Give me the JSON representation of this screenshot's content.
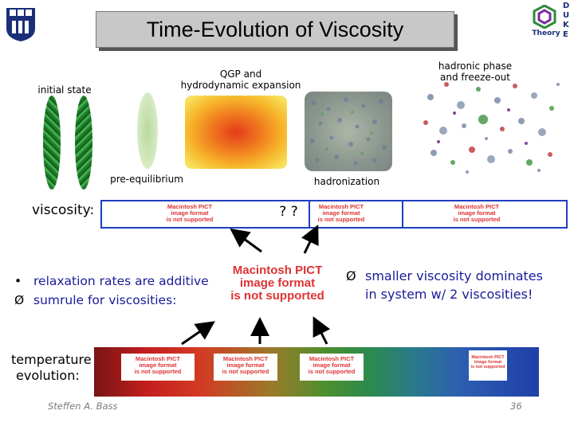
{
  "title": "Time-Evolution of Viscosity",
  "logo_right_text": "Theory",
  "logo_right_letters": [
    "D",
    "U",
    "K",
    "E"
  ],
  "stages": {
    "initial_state": "initial state",
    "pre_equilibrium": "pre-equilibrium",
    "qgp": [
      "QGP and",
      "hydrodynamic expansion"
    ],
    "hadronization": "hadronization",
    "hadronic": [
      "hadronic phase",
      "and freeze-out"
    ]
  },
  "viscosity_row": {
    "label": "viscosity:",
    "unknown": "? ?"
  },
  "pict": [
    "Macintosh PICT",
    "image format",
    "is not supported"
  ],
  "bullets": [
    {
      "mark": "•",
      "text": "relaxation rates are additive"
    },
    {
      "mark": "Ø",
      "text": "sumrule for viscosities:"
    }
  ],
  "right_bullet": {
    "mark": "Ø",
    "lines": [
      "smaller viscosity dominates",
      "in system w/ 2 viscosities!"
    ]
  },
  "temperature": [
    "temperature",
    "evolution:"
  ],
  "footer": {
    "author": "Steffen A. Bass",
    "slide_number": "36"
  }
}
